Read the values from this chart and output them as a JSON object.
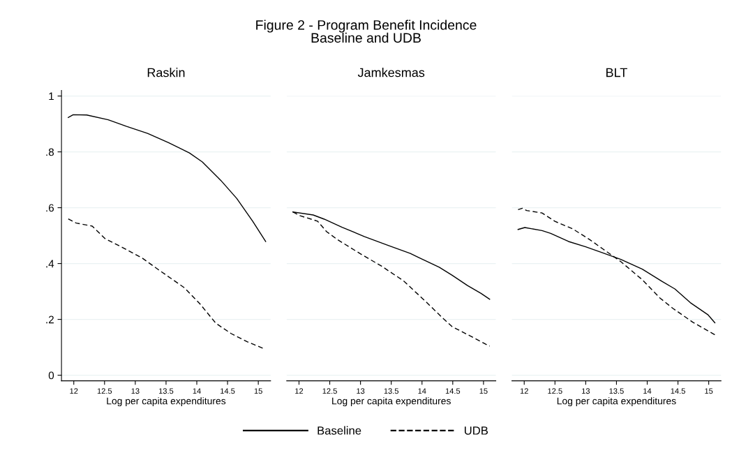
{
  "chart_data": [
    {
      "type": "line",
      "title": "Raskin",
      "xlabel": "Log per capita expenditures",
      "annotations": [
        "Figure 2 - Program Benefit Incidence",
        "Baseline and UDB"
      ],
      "xlim": [
        11.8,
        15.2
      ],
      "xticks": [
        12,
        12.5,
        13,
        13.5,
        14,
        14.5,
        15
      ],
      "ylim": [
        -0.02,
        1.02
      ],
      "yticks": [
        {
          "value": 0,
          "label": "0"
        },
        {
          "value": 0.2,
          "label": ".2"
        },
        {
          "value": 0.4,
          "label": ".4"
        },
        {
          "value": 0.6,
          "label": ".6"
        },
        {
          "value": 0.8,
          "label": ".8"
        },
        {
          "value": 1,
          "label": "1"
        }
      ],
      "grid": "y",
      "legend": "bottom",
      "series": [
        {
          "name": "Baseline",
          "color": "#000000",
          "line_style": "solid",
          "x": [
            11.91,
            11.99,
            12.21,
            12.56,
            12.86,
            13.2,
            13.54,
            13.88,
            14.09,
            14.39,
            14.65,
            14.91,
            15.12
          ],
          "values": [
            0.923,
            0.933,
            0.932,
            0.915,
            0.891,
            0.866,
            0.833,
            0.796,
            0.764,
            0.698,
            0.633,
            0.551,
            0.479
          ]
        },
        {
          "name": "UDB",
          "color": "#000000",
          "line_style": "dashed",
          "x": [
            11.91,
            12.04,
            12.3,
            12.51,
            12.77,
            13.11,
            13.37,
            13.8,
            14.05,
            14.31,
            14.56,
            14.82,
            15.08
          ],
          "values": [
            0.56,
            0.545,
            0.534,
            0.489,
            0.46,
            0.42,
            0.379,
            0.313,
            0.256,
            0.186,
            0.149,
            0.12,
            0.096
          ]
        }
      ]
    },
    {
      "type": "line",
      "title": "Jamkesmas",
      "xlabel": "Log per capita expenditures",
      "tick_labels": "x",
      "xlim": [
        11.8,
        15.2
      ],
      "xticks": [
        12,
        12.5,
        13,
        13.5,
        14,
        14.5,
        15
      ],
      "ylim": [
        -0.02,
        1
      ],
      "yticks": [
        0,
        0.2,
        0.4,
        0.6,
        0.8,
        1
      ],
      "grid": "y",
      "series": [
        {
          "color": "#000000",
          "line_style": "solid",
          "x": [
            11.9,
            12.23,
            12.41,
            12.7,
            13.06,
            13.45,
            13.81,
            13.95,
            14.28,
            14.49,
            14.74,
            14.96,
            15.1
          ],
          "values": [
            0.585,
            0.574,
            0.559,
            0.53,
            0.497,
            0.465,
            0.436,
            0.421,
            0.387,
            0.358,
            0.321,
            0.293,
            0.272
          ]
        },
        {
          "color": "#000000",
          "line_style": "dashed",
          "x": [
            11.9,
            12.02,
            12.3,
            12.45,
            12.63,
            12.99,
            13.34,
            13.7,
            14.06,
            14.35,
            14.49,
            14.78,
            15.1
          ],
          "values": [
            0.585,
            0.571,
            0.552,
            0.514,
            0.485,
            0.436,
            0.391,
            0.338,
            0.264,
            0.202,
            0.174,
            0.141,
            0.104
          ]
        }
      ]
    },
    {
      "type": "line",
      "title": "BLT",
      "xlabel": "Log per capita expenditures",
      "tick_labels": "x",
      "xlim": [
        11.8,
        15.2
      ],
      "xticks": [
        12,
        12.5,
        13,
        13.5,
        14,
        14.5,
        15
      ],
      "ylim": [
        -0.02,
        1
      ],
      "yticks": [
        0,
        0.2,
        0.4,
        0.6,
        0.8,
        1
      ],
      "grid": "y",
      "series": [
        {
          "color": "#000000",
          "line_style": "solid",
          "x": [
            11.9,
            12.01,
            12.29,
            12.43,
            12.72,
            13.0,
            13.28,
            13.57,
            13.92,
            14.24,
            14.45,
            14.7,
            14.99,
            15.1
          ],
          "values": [
            0.522,
            0.529,
            0.518,
            0.508,
            0.479,
            0.46,
            0.438,
            0.415,
            0.38,
            0.336,
            0.309,
            0.26,
            0.216,
            0.188
          ]
        },
        {
          "color": "#000000",
          "line_style": "dashed",
          "x": [
            11.9,
            11.97,
            12.04,
            12.29,
            12.5,
            12.79,
            13.07,
            13.28,
            13.57,
            13.92,
            14.21,
            14.42,
            14.74,
            15.1
          ],
          "values": [
            0.593,
            0.598,
            0.59,
            0.581,
            0.551,
            0.524,
            0.485,
            0.452,
            0.407,
            0.342,
            0.276,
            0.239,
            0.19,
            0.145
          ]
        }
      ]
    }
  ]
}
